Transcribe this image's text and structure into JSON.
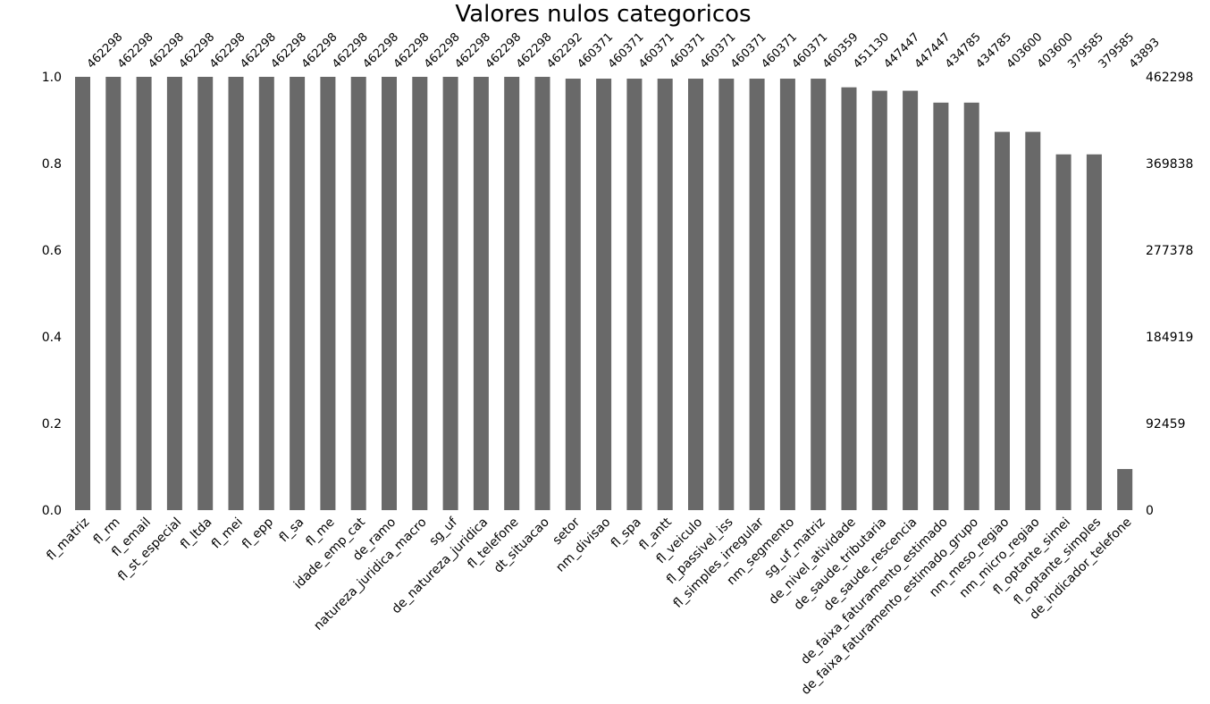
{
  "chart_data": {
    "type": "bar",
    "title": "Valores nulos categoricos",
    "bar_color": "#696969",
    "ylim": [
      0,
      1.0
    ],
    "left_ticks": [
      "1.0",
      "0.8",
      "0.6",
      "0.4",
      "0.2",
      "0.0"
    ],
    "right_ticks": [
      "462298",
      "369838",
      "277378",
      "184919",
      "92459",
      "0"
    ],
    "total": 462298,
    "categories": [
      "fl_matriz",
      "fl_rm",
      "fl_email",
      "fl_st_especial",
      "fl_ltda",
      "fl_mei",
      "fl_epp",
      "fl_sa",
      "fl_me",
      "idade_emp_cat",
      "de_ramo",
      "natureza_juridica_macro",
      "sg_uf",
      "de_natureza_juridica",
      "fl_telefone",
      "dt_situacao",
      "setor",
      "nm_divisao",
      "fl_spa",
      "fl_antt",
      "fl_veiculo",
      "fl_passivel_iss",
      "fl_simples_irregular",
      "nm_segmento",
      "sg_uf_matriz",
      "de_nivel_atividade",
      "de_saude_tributaria",
      "de_saude_rescencia",
      "de_faixa_faturamento_estimado",
      "de_faixa_faturamento_estimado_grupo",
      "nm_meso_regiao",
      "nm_micro_regiao",
      "fl_optante_simei",
      "fl_optante_simples",
      "de_indicador_telefone"
    ],
    "values": [
      462298,
      462298,
      462298,
      462298,
      462298,
      462298,
      462298,
      462298,
      462298,
      462298,
      462298,
      462298,
      462298,
      462298,
      462298,
      462292,
      460371,
      460371,
      460371,
      460371,
      460371,
      460371,
      460371,
      460371,
      460359,
      451130,
      447447,
      447447,
      434785,
      434785,
      403600,
      403600,
      379585,
      379585,
      43893
    ]
  }
}
